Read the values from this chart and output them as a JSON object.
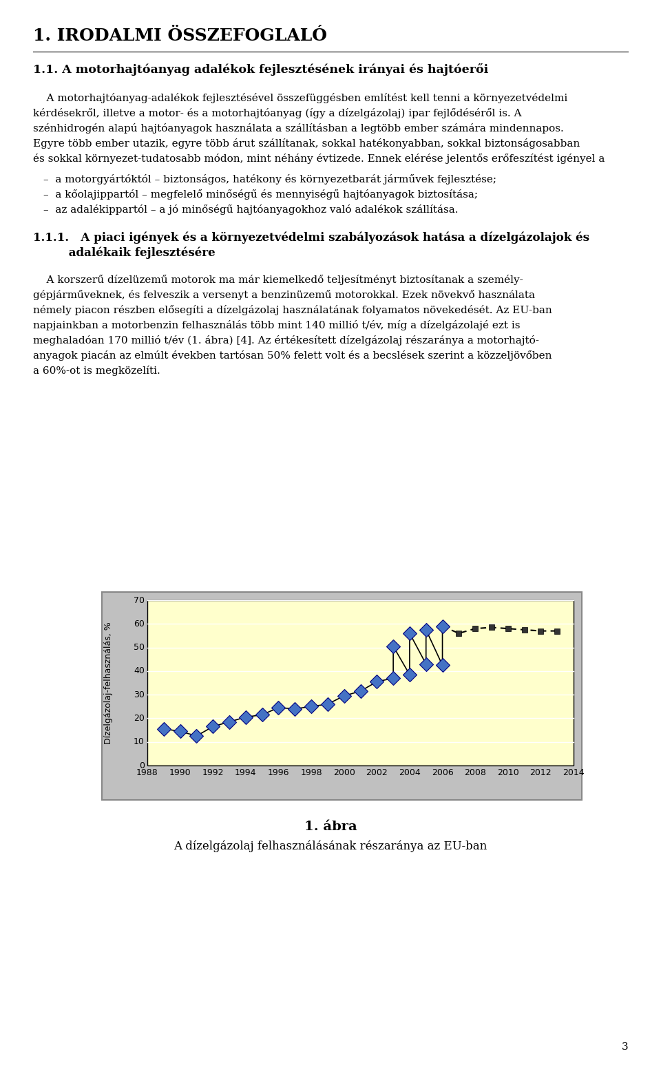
{
  "title": "1. IRODALMI ÖSSZEFOGLALÓ",
  "section_title": "1.1. A motorhajtóanyag adalékok fejlesztésének irányai és hajtóerői",
  "para1_lines": [
    "    A motorhajtóanyag-adalékok fejlesztésével összefüggésben említést kell tenni a környezetvédelmi",
    "kérdésekről, illetve a motor- és a motorhajtóanyag (így a dízelgázolaj) ipar fejlődéséről is. A",
    "szénhidrogén alapú hajtóanyagok használata a szállításban a legtöbb ember számára mindennapos.",
    "Egyre több ember utazik, egyre több árut szállítanak, sokkal hatékonyabban, sokkal biztonságosabban",
    "és sokkal környezet-tudatosabb módon, mint néhány évtizede. Ennek elérése jelentős erőfeszítést igényel a"
  ],
  "bullets": [
    "–  a motorgyártóktól – biztonságos, hatékony és környezetbarát járművek fejlesztése;",
    "–  a kőolajippartól – megfelelő minőségű és mennyiségű hajtóanyagok biztosítása;",
    "–  az adalékippartól – a jó minőségű hajtóanyagokhoz való adalékok szállítása."
  ],
  "section111_line1": "1.1.1.   A piaci igények és a környezetvédelmi szabályozások hatása a dízelgázolajok és",
  "section111_line2": "         adalékaik fejlesztésére",
  "para2_lines": [
    "    A korszerű dízelüzemű motorok ma már kiemelkedő teljesítményt biztosítanak a személy-",
    "gépjárműveknek, és felveszik a versenyt a benzinüzemű motorokkal. Ezek növekvő használata",
    "némely piacon részben elősegíti a dízelgázolaj használatának folyamatos növekedését. Az EU-ban",
    "napjainkban a motorbenzin felhasználás több mint 140 millió t/év, míg a dízelgázolajé ezt is",
    "meghaladóan 170 millió t/év (1. ábra) [4]. Az értékesített dízelgázolaj részaránya a motorhajtó-",
    "anyagok piacán az elmúlt években tartósan 50% felett volt és a becslések szerint a közzeljövőben",
    "a 60%-ot is megközelíti."
  ],
  "fig_caption_bold": "1. ábra",
  "fig_caption": "A dízelgázolaj felhasználásának részaránya az EU-ban",
  "ylabel": "Dízelgázolaj-felhasználás, %",
  "ylim": [
    0,
    70
  ],
  "yticks": [
    0,
    10,
    20,
    30,
    40,
    50,
    60,
    70
  ],
  "x_data_min": 1988,
  "x_data_max": 2014,
  "solid_x": [
    1989,
    1990,
    1991,
    1992,
    1993,
    1994,
    1995,
    1996,
    1997,
    1998,
    1999,
    2000,
    2001,
    2002,
    2003,
    2004,
    2005,
    2006,
    2003,
    2004,
    2005,
    2006
  ],
  "solid_y": [
    15.5,
    14.5,
    12.5,
    16.5,
    18.5,
    20.5,
    21.5,
    24.5,
    24.0,
    25.0,
    26.0,
    29.5,
    31.5,
    35.5,
    37.0,
    38.5,
    43.0,
    42.5,
    50.5,
    56.0,
    57.5,
    59.0
  ],
  "dashed_x": [
    2006,
    2007,
    2008,
    2009,
    2010,
    2011,
    2012,
    2013
  ],
  "dashed_y": [
    59.0,
    56.0,
    58.0,
    58.5,
    58.0,
    57.5,
    57.0,
    57.0
  ],
  "chart_bg": "#ffffcc",
  "outer_bg": "#c0c0c0",
  "diamond_color": "#4472c4",
  "diamond_edge": "#000080",
  "dashed_marker_color": "#333333",
  "page_number": "3"
}
